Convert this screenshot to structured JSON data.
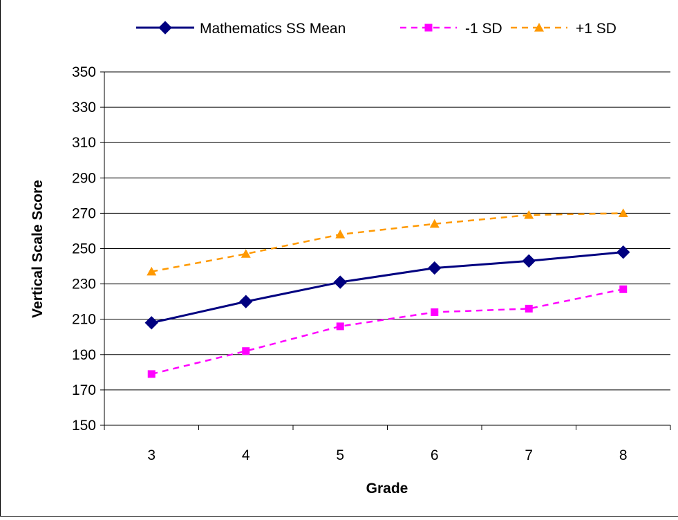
{
  "chart_data": {
    "type": "line",
    "title": "",
    "xlabel": "Grade",
    "ylabel": "Vertical Scale Score",
    "categories": [
      "3",
      "4",
      "5",
      "6",
      "7",
      "8"
    ],
    "ylim": [
      150,
      350
    ],
    "yticks": [
      150,
      170,
      190,
      210,
      230,
      250,
      270,
      290,
      310,
      330,
      350
    ],
    "grid": "horizontal",
    "legend_position": "top",
    "series": [
      {
        "name": "Mathematics SS Mean",
        "values": [
          208,
          220,
          231,
          239,
          243,
          248
        ],
        "color": "#000080",
        "style": "solid",
        "marker": "diamond"
      },
      {
        "name": "-1 SD",
        "values": [
          179,
          192,
          206,
          214,
          216,
          227
        ],
        "color": "#FF00FF",
        "style": "dashed",
        "marker": "square"
      },
      {
        "name": "+1 SD",
        "values": [
          237,
          247,
          258,
          264,
          269,
          270
        ],
        "color": "#FF9900",
        "style": "dashed",
        "marker": "triangle"
      }
    ]
  }
}
